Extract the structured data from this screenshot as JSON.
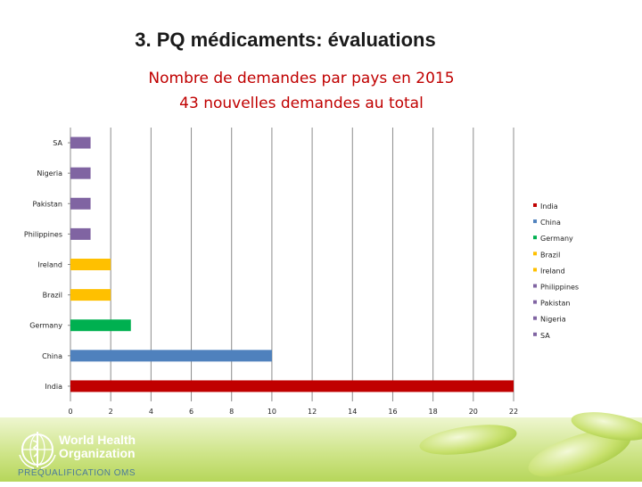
{
  "slide": {
    "title": "3. PQ médicaments: évaluations",
    "subtitle_line1": "Nombre de demandes par pays en 2015",
    "subtitle_line2": "43 nouvelles demandes au total"
  },
  "footer": {
    "org_name": "World Health\nOrganization",
    "program": "PREQUALIFICATION OMS",
    "logo_icon": "who-emblem-icon"
  },
  "chart_data": {
    "type": "bar",
    "orientation": "horizontal",
    "title": "Nombre de demandes par pays en 2015",
    "categories": [
      "India",
      "China",
      "Germany",
      "Brazil",
      "Ireland",
      "Philippines",
      "Pakistan",
      "Nigeria",
      "SA"
    ],
    "values": [
      22,
      10,
      3,
      2,
      2,
      1,
      1,
      1,
      1
    ],
    "colors": [
      "#c00000",
      "#4f81bd",
      "#00b050",
      "#ffc000",
      "#ffc000",
      "#8064a2",
      "#8064a2",
      "#8064a2",
      "#8064a2"
    ],
    "xlim": [
      0,
      22
    ],
    "xticks": [
      0,
      2,
      4,
      6,
      8,
      10,
      12,
      14,
      16,
      18,
      20,
      22
    ],
    "grid": true,
    "legend": {
      "position": "right",
      "entries": [
        "India",
        "China",
        "Germany",
        "Brazil",
        "Ireland",
        "Philippines",
        "Pakistan",
        "Nigeria",
        "SA"
      ],
      "colors": [
        "#c00000",
        "#4f81bd",
        "#00b050",
        "#ffc000",
        "#ffc000",
        "#8064a2",
        "#8064a2",
        "#8064a2",
        "#8064a2"
      ]
    }
  }
}
